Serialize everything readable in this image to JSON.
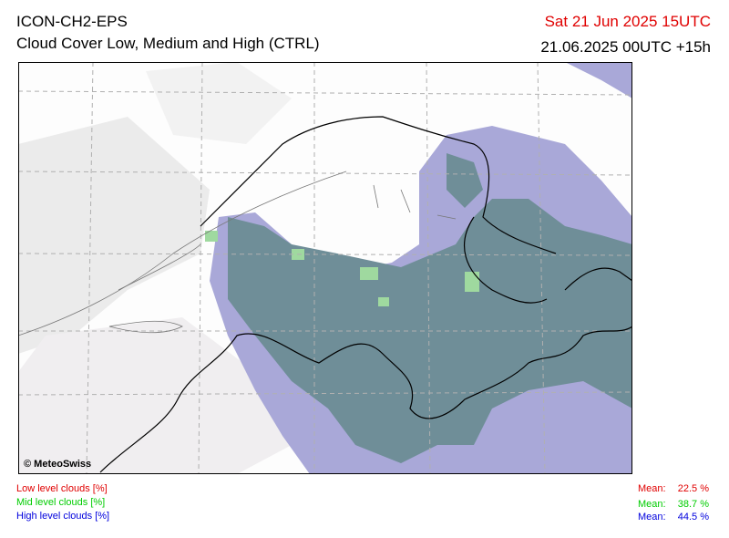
{
  "header": {
    "model": "ICON-CH2-EPS",
    "product": "Cloud Cover Low, Medium and High (CTRL)",
    "valid_time": "Sat 21 Jun 2025 15UTC",
    "run": "21.06.2025 00UTC +15h"
  },
  "map": {
    "copyright": "© MeteoSwiss"
  },
  "legend": [
    {
      "label": "Low level clouds [%]",
      "mean_label": "Mean:",
      "mean": "22.5 %"
    },
    {
      "label": "Mid level clouds [%]",
      "mean_label": "Mean:",
      "mean": "38.7 %"
    },
    {
      "label": "High level clouds [%]",
      "mean_label": "Mean:",
      "mean": "44.5 %"
    }
  ]
}
